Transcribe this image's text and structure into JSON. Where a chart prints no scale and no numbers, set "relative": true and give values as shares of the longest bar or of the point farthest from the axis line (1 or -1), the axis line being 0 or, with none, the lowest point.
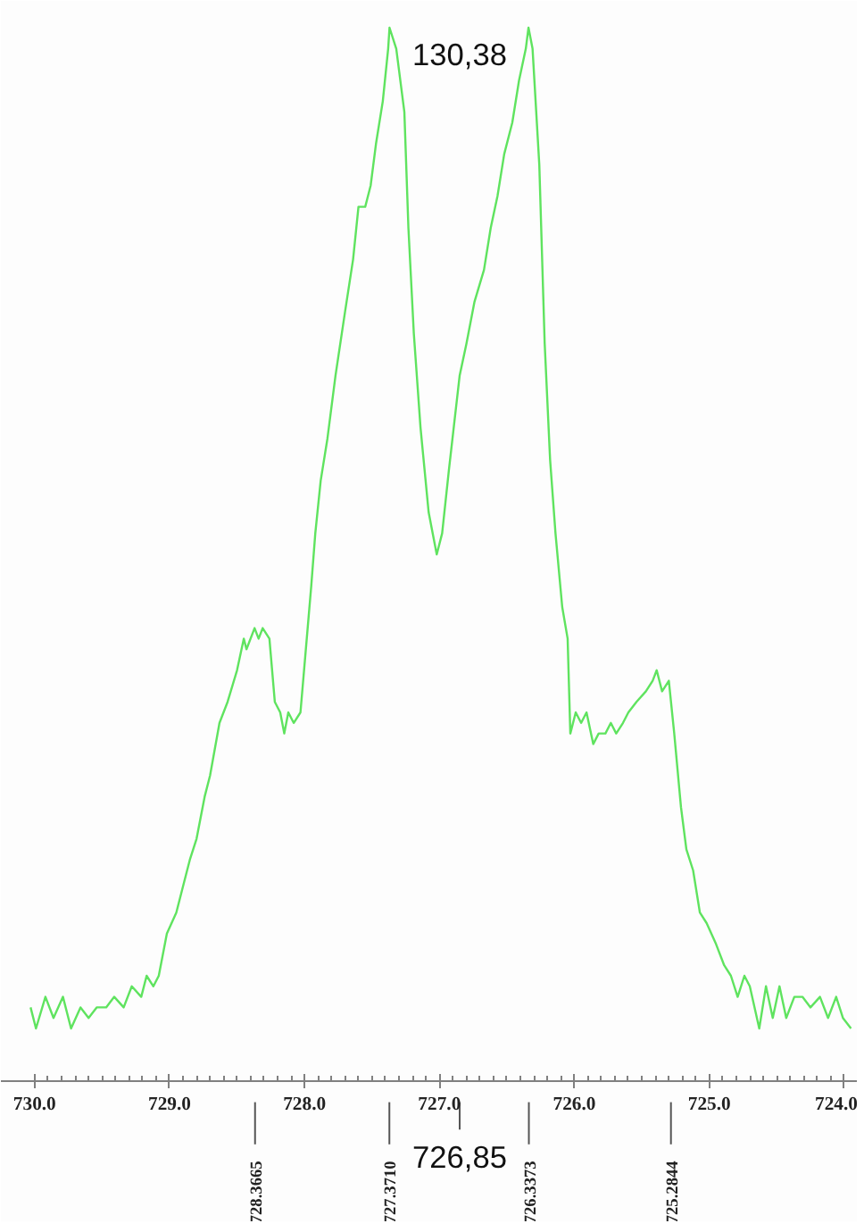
{
  "chart_data": {
    "type": "line",
    "relative": true,
    "tick_labels": "x",
    "xlim": [
      730.25,
      723.9
    ],
    "xticks": [
      {
        "value": 730,
        "label": "730.0"
      },
      {
        "value": 729,
        "label": "729.0"
      },
      {
        "value": 728,
        "label": "728.0"
      },
      {
        "value": 727,
        "label": "727.0"
      },
      {
        "value": 726,
        "label": "726.0"
      },
      {
        "value": 725,
        "label": "725.0"
      },
      {
        "value": 724,
        "label": "724.0"
      }
    ],
    "series": [
      {
        "color": "#5fe35f",
        "x": [
          730.03,
          729.99,
          729.92,
          729.86,
          729.79,
          729.73,
          729.66,
          729.6,
          729.54,
          729.47,
          729.41,
          729.34,
          729.28,
          729.21,
          729.17,
          729.12,
          729.08,
          729.02,
          728.95,
          728.89,
          728.85,
          728.8,
          728.74,
          728.7,
          728.63,
          728.57,
          728.5,
          728.45,
          728.43,
          728.37,
          728.34,
          728.31,
          728.26,
          728.22,
          728.18,
          728.15,
          728.12,
          728.08,
          728.03,
          727.99,
          727.95,
          727.92,
          727.88,
          727.83,
          727.77,
          727.7,
          727.64,
          727.6,
          727.55,
          727.51,
          727.47,
          727.42,
          727.38,
          727.37,
          727.32,
          727.26,
          727.23,
          727.19,
          727.14,
          727.08,
          727.05,
          727.02,
          726.98,
          726.93,
          726.85,
          726.8,
          726.74,
          726.67,
          726.62,
          726.57,
          726.52,
          726.46,
          726.41,
          726.36,
          726.34,
          726.31,
          726.26,
          726.22,
          726.18,
          726.14,
          726.09,
          726.05,
          726.03,
          725.99,
          725.95,
          725.91,
          725.86,
          725.82,
          725.77,
          725.73,
          725.69,
          725.64,
          725.6,
          725.54,
          725.47,
          725.42,
          725.39,
          725.35,
          725.3,
          725.26,
          725.21,
          725.17,
          725.12,
          725.07,
          725.02,
          724.95,
          724.89,
          724.84,
          724.79,
          724.74,
          724.7,
          724.63,
          724.58,
          724.53,
          724.48,
          724.43,
          724.37,
          724.31,
          724.25,
          724.18,
          724.12,
          724.06,
          724.01,
          723.95
        ],
        "values": [
          0.07,
          0.05,
          0.08,
          0.06,
          0.08,
          0.05,
          0.07,
          0.06,
          0.07,
          0.07,
          0.08,
          0.07,
          0.09,
          0.08,
          0.1,
          0.09,
          0.1,
          0.14,
          0.16,
          0.19,
          0.21,
          0.23,
          0.27,
          0.29,
          0.34,
          0.36,
          0.39,
          0.42,
          0.41,
          0.43,
          0.42,
          0.43,
          0.42,
          0.36,
          0.35,
          0.33,
          0.35,
          0.34,
          0.35,
          0.41,
          0.47,
          0.52,
          0.57,
          0.61,
          0.67,
          0.73,
          0.78,
          0.83,
          0.83,
          0.85,
          0.89,
          0.93,
          0.98,
          1.0,
          0.98,
          0.92,
          0.81,
          0.71,
          0.62,
          0.54,
          0.52,
          0.5,
          0.52,
          0.58,
          0.67,
          0.7,
          0.74,
          0.77,
          0.81,
          0.84,
          0.88,
          0.91,
          0.95,
          0.98,
          1.0,
          0.98,
          0.87,
          0.7,
          0.59,
          0.52,
          0.45,
          0.42,
          0.33,
          0.35,
          0.34,
          0.35,
          0.32,
          0.33,
          0.33,
          0.34,
          0.33,
          0.34,
          0.35,
          0.36,
          0.37,
          0.38,
          0.39,
          0.37,
          0.38,
          0.33,
          0.26,
          0.22,
          0.2,
          0.16,
          0.15,
          0.13,
          0.11,
          0.1,
          0.08,
          0.1,
          0.09,
          0.05,
          0.09,
          0.06,
          0.09,
          0.06,
          0.08,
          0.08,
          0.07,
          0.08,
          0.06,
          0.08,
          0.06,
          0.05
        ]
      }
    ],
    "ref_lines": [
      {
        "axis": "x",
        "value": 728.3665,
        "label": "728.3665"
      },
      {
        "axis": "x",
        "value": 727.371,
        "label": "727.3710"
      },
      {
        "axis": "x",
        "value": 726.3373,
        "label": "726.3373"
      },
      {
        "axis": "x",
        "value": 725.2844,
        "label": "725.2844"
      },
      {
        "axis": "x",
        "value": 726.85,
        "label": "726,85"
      }
    ],
    "annotations": [
      "130,38"
    ]
  }
}
